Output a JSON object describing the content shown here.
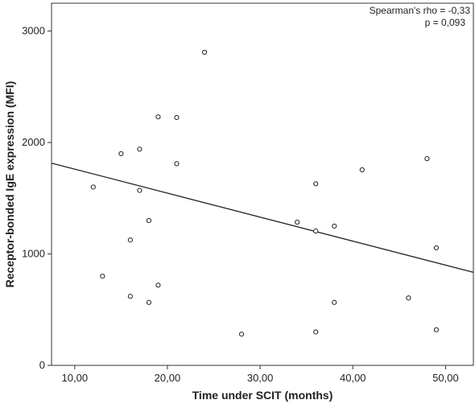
{
  "chart_data": {
    "type": "scatter",
    "xlabel": "Time under SCIT (months)",
    "ylabel": "Receptor-bonded IgE expression (MFI)",
    "xlim": [
      7.5,
      53
    ],
    "ylim": [
      0,
      3250
    ],
    "x_ticks": [
      10,
      20,
      30,
      40,
      50
    ],
    "x_tick_labels": [
      "10,00",
      "20,00",
      "30,00",
      "40,00",
      "50,00"
    ],
    "y_ticks": [
      0,
      1000,
      2000,
      3000
    ],
    "y_tick_labels": [
      "0",
      "1000",
      "2000",
      "3000"
    ],
    "grid": false,
    "points": [
      {
        "x": 12,
        "y": 1600
      },
      {
        "x": 13,
        "y": 800
      },
      {
        "x": 15,
        "y": 1900
      },
      {
        "x": 16,
        "y": 1125
      },
      {
        "x": 16,
        "y": 620
      },
      {
        "x": 17,
        "y": 1940
      },
      {
        "x": 17,
        "y": 1570
      },
      {
        "x": 18,
        "y": 1300
      },
      {
        "x": 18,
        "y": 565
      },
      {
        "x": 19,
        "y": 2230
      },
      {
        "x": 19,
        "y": 720
      },
      {
        "x": 21,
        "y": 2225
      },
      {
        "x": 21,
        "y": 1810
      },
      {
        "x": 24,
        "y": 2810
      },
      {
        "x": 28,
        "y": 280
      },
      {
        "x": 34,
        "y": 1285
      },
      {
        "x": 36,
        "y": 1630
      },
      {
        "x": 36,
        "y": 1205
      },
      {
        "x": 36,
        "y": 300
      },
      {
        "x": 38,
        "y": 1250
      },
      {
        "x": 38,
        "y": 565
      },
      {
        "x": 41,
        "y": 1755
      },
      {
        "x": 46,
        "y": 605
      },
      {
        "x": 48,
        "y": 1855
      },
      {
        "x": 49,
        "y": 1055
      },
      {
        "x": 49,
        "y": 320
      }
    ],
    "fit_line": {
      "x": [
        7.5,
        53
      ],
      "y": [
        1815,
        835
      ]
    },
    "annotations": [
      "Spearman's rho = -0,33",
      "p = 0,093"
    ]
  }
}
